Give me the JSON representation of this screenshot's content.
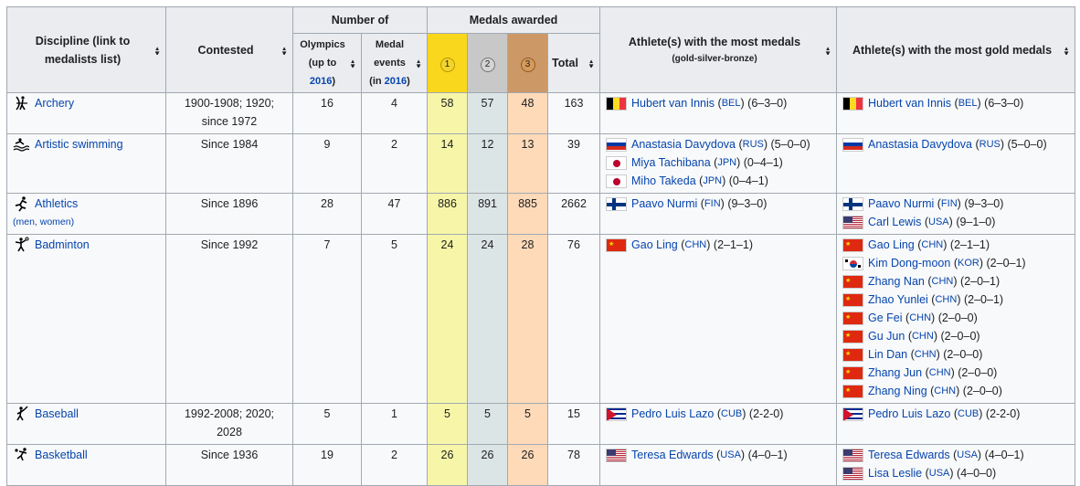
{
  "headers": {
    "discipline": "Discipline (link to medalists list)",
    "contested": "Contested",
    "number_of": "Number of",
    "medals_awarded": "Medals awarded",
    "olympics_line1": "Olympics",
    "olympics_line2": "(up to",
    "olympics_year": "2016",
    "olympics_close": ")",
    "events_line1": "Medal",
    "events_line2": "events",
    "events_in": "(in ",
    "events_year": "2016",
    "events_close": ")",
    "gold": "1",
    "silver": "2",
    "bronze": "3",
    "total": "Total",
    "most_medals": "Athlete(s) with the most medals",
    "most_medals_sub": "(gold-silver-bronze)",
    "most_gold": "Athlete(s) with the most gold medals"
  },
  "colors": {
    "gold_header": "#f9d71c",
    "silver_header": "#c8c8c8",
    "bronze_header": "#cc9966",
    "gold_cell": "#f7f6a8",
    "silver_cell": "#dce5e5",
    "bronze_cell": "#ffdab9",
    "link": "#0645ad"
  },
  "rows": [
    {
      "discipline": "Archery",
      "icon": "archery-icon",
      "note": "",
      "contested": [
        "1900-1908; 1920;",
        "since 1972"
      ],
      "olympics": "16",
      "events": "4",
      "gold": "58",
      "silver": "57",
      "bronze": "48",
      "total": "163",
      "most_medals": [
        {
          "flag": "BEL",
          "name": "Hubert van Innis",
          "code": "BEL",
          "record": "(6–3–0)"
        }
      ],
      "most_gold": [
        {
          "flag": "BEL",
          "name": "Hubert van Innis",
          "code": "BEL",
          "record": "(6–3–0)"
        }
      ]
    },
    {
      "discipline": "Artistic swimming",
      "icon": "swimming-icon",
      "note": "",
      "contested": [
        "Since 1984"
      ],
      "olympics": "9",
      "events": "2",
      "gold": "14",
      "silver": "12",
      "bronze": "13",
      "total": "39",
      "most_medals": [
        {
          "flag": "RUS",
          "name": "Anastasia Davydova",
          "code": "RUS",
          "record": "(5–0–0)"
        },
        {
          "flag": "JPN",
          "name": "Miya Tachibana",
          "code": "JPN",
          "record": "(0–4–1)"
        },
        {
          "flag": "JPN",
          "name": "Miho Takeda",
          "code": "JPN",
          "record": "(0–4–1)"
        }
      ],
      "most_gold": [
        {
          "flag": "RUS",
          "name": "Anastasia Davydova",
          "code": "RUS",
          "record": "(5–0–0)"
        }
      ]
    },
    {
      "discipline": "Athletics",
      "icon": "athletics-icon",
      "note": "(men, women)",
      "contested": [
        "Since 1896"
      ],
      "olympics": "28",
      "events": "47",
      "gold": "886",
      "silver": "891",
      "bronze": "885",
      "total": "2662",
      "most_medals": [
        {
          "flag": "FIN",
          "name": "Paavo Nurmi",
          "code": "FIN",
          "record": "(9–3–0)"
        }
      ],
      "most_gold": [
        {
          "flag": "FIN",
          "name": "Paavo Nurmi",
          "code": "FIN",
          "record": "(9–3–0)"
        },
        {
          "flag": "USA",
          "name": "Carl Lewis",
          "code": "USA",
          "record": "(9–1–0)"
        }
      ]
    },
    {
      "discipline": "Badminton",
      "icon": "badminton-icon",
      "note": "",
      "contested": [
        "Since 1992"
      ],
      "olympics": "7",
      "events": "5",
      "gold": "24",
      "silver": "24",
      "bronze": "28",
      "total": "76",
      "most_medals": [
        {
          "flag": "CHN",
          "name": "Gao Ling",
          "code": "CHN",
          "record": "(2–1–1)"
        }
      ],
      "most_gold": [
        {
          "flag": "CHN",
          "name": "Gao Ling",
          "code": "CHN",
          "record": "(2–1–1)"
        },
        {
          "flag": "KOR",
          "name": "Kim Dong-moon",
          "code": "KOR",
          "record": "(2–0–1)"
        },
        {
          "flag": "CHN",
          "name": "Zhang Nan",
          "code": "CHN",
          "record": "(2–0–1)"
        },
        {
          "flag": "CHN",
          "name": "Zhao Yunlei",
          "code": "CHN",
          "record": "(2–0–1)"
        },
        {
          "flag": "CHN",
          "name": "Ge Fei",
          "code": "CHN",
          "record": "(2–0–0)"
        },
        {
          "flag": "CHN",
          "name": "Gu Jun",
          "code": "CHN",
          "record": "(2–0–0)"
        },
        {
          "flag": "CHN",
          "name": "Lin Dan",
          "code": "CHN",
          "record": "(2–0–0)"
        },
        {
          "flag": "CHN",
          "name": "Zhang Jun",
          "code": "CHN",
          "record": "(2–0–0)"
        },
        {
          "flag": "CHN",
          "name": "Zhang Ning",
          "code": "CHN",
          "record": "(2–0–0)"
        }
      ]
    },
    {
      "discipline": "Baseball",
      "icon": "baseball-icon",
      "note": "",
      "contested": [
        "1992-2008; 2020;",
        "2028"
      ],
      "olympics": "5",
      "events": "1",
      "gold": "5",
      "silver": "5",
      "bronze": "5",
      "total": "15",
      "most_medals": [
        {
          "flag": "CUB",
          "name": "Pedro Luis Lazo",
          "code": "CUB",
          "record": "(2-2-0)"
        }
      ],
      "most_gold": [
        {
          "flag": "CUB",
          "name": "Pedro Luis Lazo",
          "code": "CUB",
          "record": "(2-2-0)"
        }
      ]
    },
    {
      "discipline": "Basketball",
      "icon": "basketball-icon",
      "note": "",
      "contested": [
        "Since 1936"
      ],
      "olympics": "19",
      "events": "2",
      "gold": "26",
      "silver": "26",
      "bronze": "26",
      "total": "78",
      "most_medals": [
        {
          "flag": "USA",
          "name": "Teresa Edwards",
          "code": "USA",
          "record": "(4–0–1)"
        }
      ],
      "most_gold": [
        {
          "flag": "USA",
          "name": "Teresa Edwards",
          "code": "USA",
          "record": "(4–0–1)"
        },
        {
          "flag": "USA",
          "name": "Lisa Leslie",
          "code": "USA",
          "record": "(4–0–0)"
        }
      ]
    }
  ]
}
